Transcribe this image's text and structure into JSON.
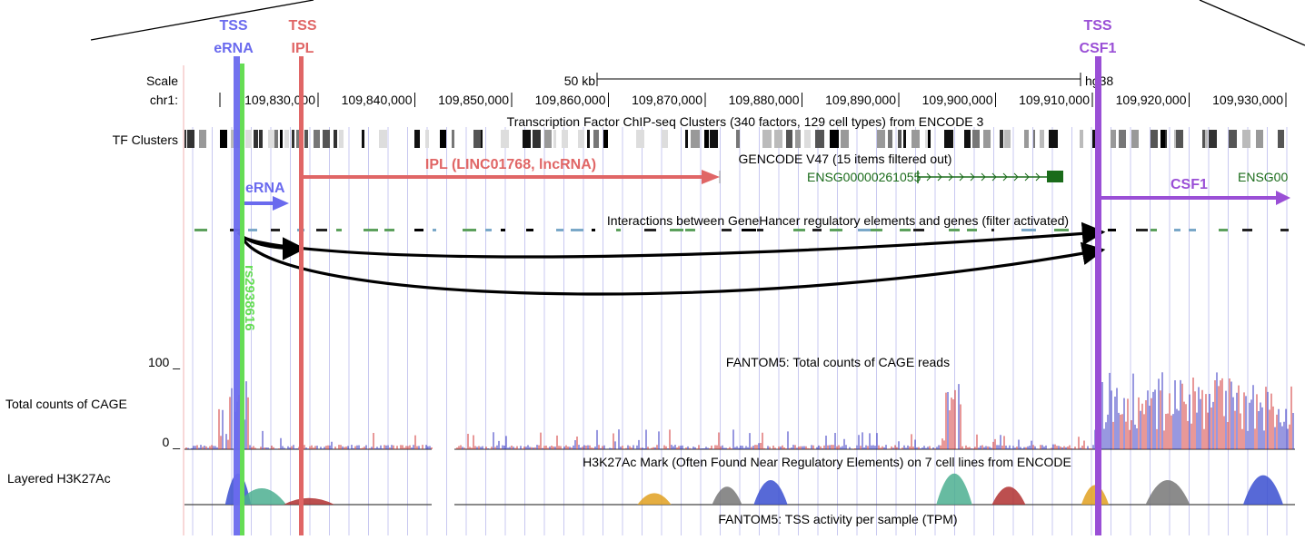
{
  "colors": {
    "erna": "#6a6aee",
    "ipl": "#e06666",
    "csf1": "#9a4fd6",
    "snp": "#66dd55",
    "gene_green": "#1a6b1a",
    "gridline": "#c8c8f0",
    "arrows": "#000000"
  },
  "annotations": {
    "tss_erna": [
      "TSS",
      "eRNA"
    ],
    "tss_ipl": [
      "TSS",
      "IPL"
    ],
    "tss_csf1": [
      "TSS",
      "CSF1"
    ],
    "erna_label": "eRNA",
    "ipl_label": "IPL (LINC01768, lncRNA)",
    "csf1_label": "CSF1",
    "snp_label": "rs2938616"
  },
  "ruler": {
    "scale_label": "Scale",
    "chrom_label": "chr1:",
    "scale_bar_text": "50 kb",
    "assembly": "hg38",
    "positions": [
      "109,830,000",
      "109,840,000",
      "109,850,000",
      "109,860,000",
      "109,870,000",
      "109,880,000",
      "109,890,000",
      "109,900,000",
      "109,910,000",
      "109,920,000",
      "109,930,000"
    ]
  },
  "tracks": {
    "tf_title": "Transcription Factor ChIP-seq Clusters (340 factors, 129 cell types) from ENCODE 3",
    "tf_label": "TF Clusters",
    "gencode_title": "GENCODE V47 (15 items filtered out)",
    "gene1_id": "ENSG00000261055",
    "gene2_id": "ENSG00",
    "genehancer_title": "Interactions between GeneHancer regulatory elements and genes (filter activated)",
    "cage_title": "FANTOM5: Total counts of CAGE reads",
    "cage_label": "Total counts of CAGE",
    "cage_max": "100 _",
    "cage_min": "0 _",
    "h3k27ac_title": "H3K27Ac Mark (Often Found Near Regulatory Elements) on 7 cell lines from ENCODE",
    "h3k27ac_label": "Layered H3K27Ac",
    "tss_activity_title": "FANTOM5: TSS activity per sample (TPM)"
  }
}
